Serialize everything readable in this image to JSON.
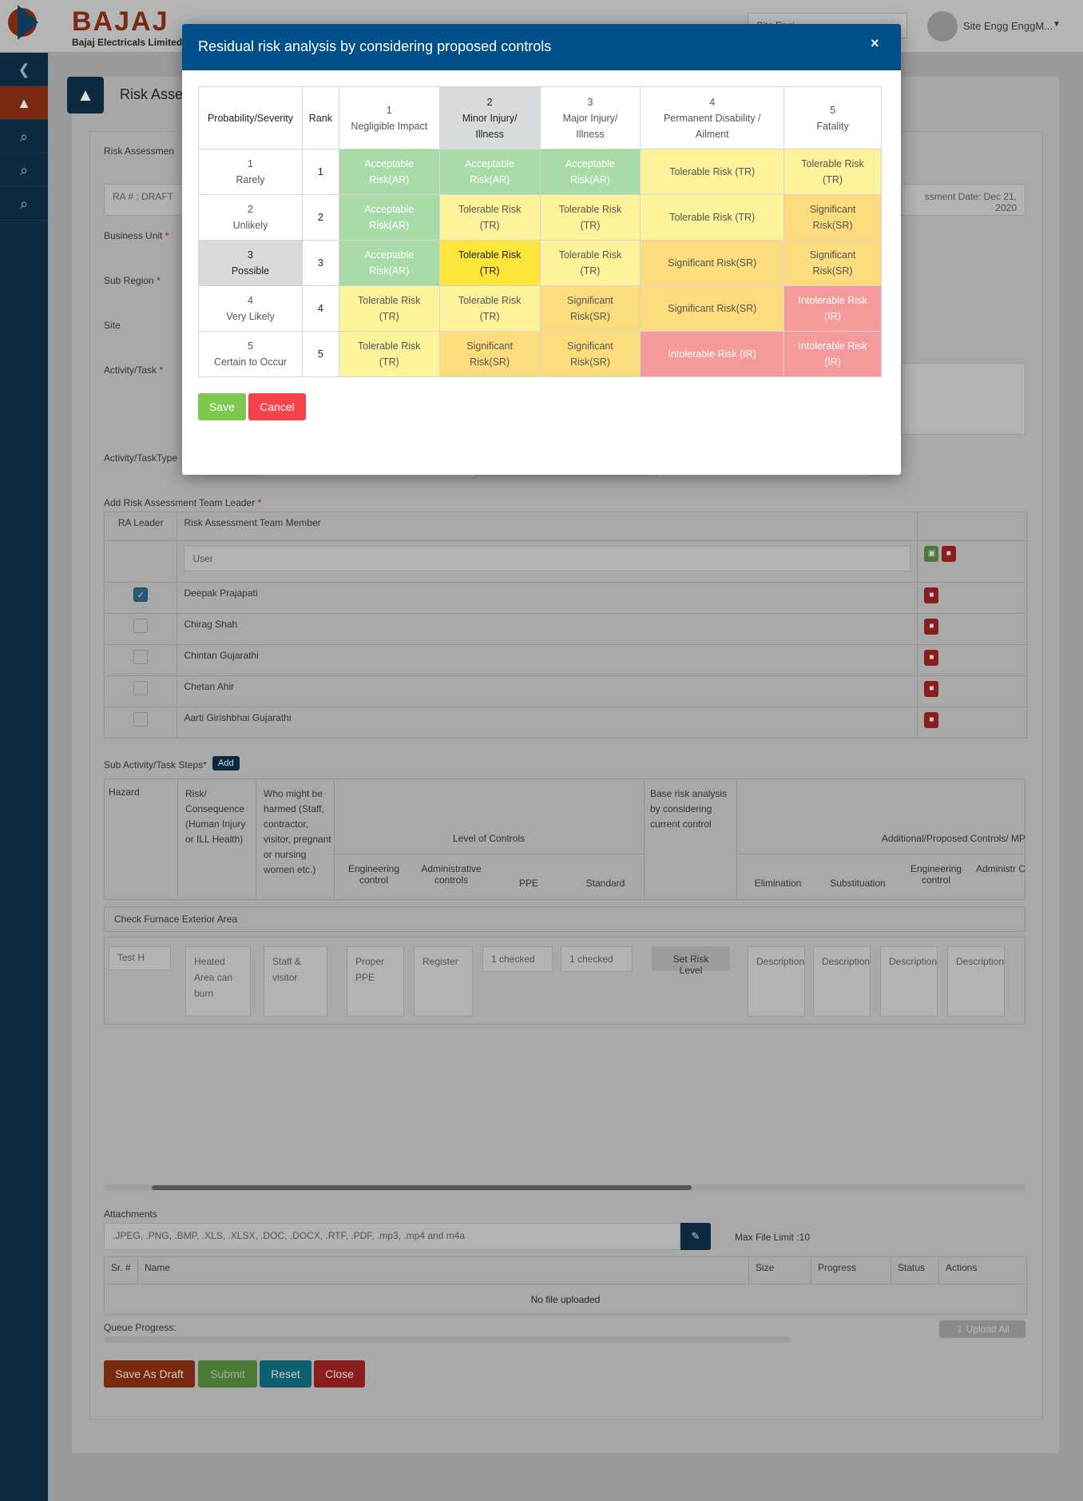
{
  "header": {
    "logo_text": "BAJAJ",
    "logo_subtitle": "Bajaj Electricals Limited",
    "site_select": "Site Engi...",
    "user_name": "Site Engg EnggM...",
    "caret": "▼"
  },
  "sidebar": {
    "items": [
      {
        "icon": "chevron-left-icon",
        "glyph": "❮"
      },
      {
        "icon": "warning-icon",
        "glyph": "▲"
      },
      {
        "icon": "search-icon",
        "glyph": "⌕"
      },
      {
        "icon": "search-icon",
        "glyph": "⌕"
      },
      {
        "icon": "search-icon",
        "glyph": "⌕"
      }
    ]
  },
  "page": {
    "title": "Risk Asse",
    "tab_label": "Risk Assessmen",
    "ra_number": "RA # : DRAFT",
    "assessment_date": "ssment Date: Dec 21, 2020",
    "business_unit_label": "Business Unit",
    "sub_region_label": "Sub Region",
    "site_label": "Site",
    "activity_label": "Activity/Task",
    "activity_type_label": "Activity/TaskType",
    "required_mark": "*",
    "team_leader_label": "Add Risk Assessment Team Leader",
    "team_table": {
      "headers": [
        "RA Leader",
        "Risk Assessment Team Member"
      ],
      "user_placeholder": "User",
      "members": [
        {
          "name": "Deepak Prajapati",
          "leader": true
        },
        {
          "name": "Chirag Shah",
          "leader": false
        },
        {
          "name": "Chintan Gujarathi",
          "leader": false
        },
        {
          "name": "Chetan Ahir",
          "leader": false
        },
        {
          "name": "Aarti Girishbhai Gujarathi",
          "leader": false
        }
      ]
    },
    "sub_activity_label": "Sub Activity/Task Steps",
    "add_button": "Add",
    "steps_table": {
      "hazard": "Hazard",
      "risk": "Risk/ Consequence (Human Injury or ILL Health)",
      "who": "Who might be harmed (Staff, contractor, visitor, pregnant or nursing women etc.)",
      "level_of_controls": "Level of Controls",
      "engineering_control": "Engineering control",
      "administrative_controls": "Administrative controls",
      "ppe": "PPE",
      "standard": "Standard",
      "base_risk": "Base risk analysis by considering current control",
      "additional": "Additional/Proposed Controls/ MP",
      "elimination": "Elimination",
      "substitution": "Substituation",
      "engineering_control_2": "Engineering control",
      "administrative_2": "Administr Contro",
      "group_row": "Check Furnace Exterior Area",
      "hazard_value": "Test H",
      "risk_value": "Heated Area can burn",
      "who_value": "Staff & visitor",
      "ppe_value": "Proper PPE",
      "standard_value": "Register",
      "engineering_select": "1 checked",
      "admin_select": "1 checked",
      "set_risk_level": "Set Risk Level",
      "description_placeholder": "Description"
    },
    "attachments_label": "Attachments",
    "attachments_placeholder": ".JPEG, .PNG, .BMP, .XLS, .XLSX, .DOC, .DOCX, .RTF, .PDF, .mp3, .mp4 and m4a",
    "max_file_limit": "Max File Limit :10",
    "upload_table": {
      "headers": [
        "Sr. #",
        "Name",
        "Size",
        "Progress",
        "Status",
        "Actions"
      ],
      "empty": "No file uploaded"
    },
    "queue_progress": "Queue Progress:",
    "queue_progress_value": 0,
    "upload_all": "Upload All",
    "buttons": {
      "save_draft": "Save As Draft",
      "submit": "Submit",
      "reset": "Reset",
      "close": "Close"
    }
  },
  "modal": {
    "title": "Residual risk analysis by considering proposed controls",
    "close": "×",
    "corner_header": "Probability/Severity",
    "rank_header": "Rank",
    "severity": [
      {
        "num": "1",
        "label": "Negligible Impact"
      },
      {
        "num": "2",
        "label": "Minor Injury/ Illness"
      },
      {
        "num": "3",
        "label": "Major Injury/ Illness"
      },
      {
        "num": "4",
        "label": "Permanent Disability / Ailment"
      },
      {
        "num": "5",
        "label": "Fatality"
      }
    ],
    "rows": [
      {
        "num": "1",
        "label": "Rarely",
        "rank": "1",
        "cells": [
          "Acceptable Risk(AR)",
          "Acceptable Risk(AR)",
          "Acceptable Risk(AR)",
          "Tolerable Risk (TR)",
          "Tolerable Risk (TR)"
        ]
      },
      {
        "num": "2",
        "label": "Unlikely",
        "rank": "2",
        "cells": [
          "Acceptable Risk(AR)",
          "Tolerable Risk (TR)",
          "Tolerable Risk (TR)",
          "Tolerable Risk (TR)",
          "Significant Risk(SR)"
        ]
      },
      {
        "num": "3",
        "label": "Possible",
        "rank": "3",
        "cells": [
          "Acceptable Risk(AR)",
          "Tolerable Risk (TR)",
          "Tolerable Risk (TR)",
          "Significant Risk(SR)",
          "Significant Risk(SR)"
        ]
      },
      {
        "num": "4",
        "label": "Very Likely",
        "rank": "4",
        "cells": [
          "Tolerable Risk (TR)",
          "Tolerable Risk (TR)",
          "Significant Risk(SR)",
          "Significant Risk(SR)",
          "Intolerable Risk (IR)"
        ]
      },
      {
        "num": "5",
        "label": "Certain to Occur",
        "rank": "5",
        "cells": [
          "Tolerable Risk (TR)",
          "Significant Risk(SR)",
          "Significant Risk(SR)",
          "Intolerable Risk (IR)",
          "Intolerable Risk (IR)"
        ]
      }
    ],
    "selected": {
      "row": 3,
      "col": 2
    },
    "colors": {
      "AR": "#a8dba8",
      "TR": "#fdf39b",
      "SR": "#fddc7d",
      "IR": "#f59a9a",
      "selected": "#fde53a",
      "header": "#02508a"
    },
    "save": "Save",
    "cancel": "Cancel"
  }
}
